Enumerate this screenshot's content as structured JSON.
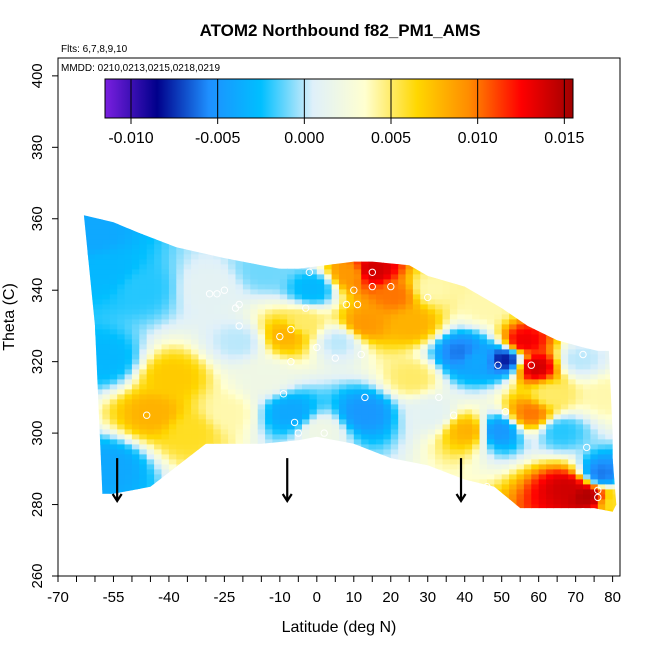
{
  "chart_data": {
    "type": "heatmap",
    "title": "ATOM2 Northbound f82_PM1_AMS",
    "annotations": [
      "Flts: 6,7,8,9,10",
      "MMDD: 0210,0213,0215,0218,0219"
    ],
    "xlabel": "Latitude (deg N)",
    "ylabel": "Theta (C)",
    "xlim": [
      -70,
      82
    ],
    "ylim": [
      260,
      405
    ],
    "x_ticks": [
      -70,
      -55,
      -40,
      -25,
      -10,
      0,
      10,
      20,
      30,
      40,
      50,
      60,
      70,
      80
    ],
    "y_ticks": [
      260,
      280,
      300,
      320,
      340,
      360,
      380,
      400
    ],
    "colorbar": {
      "min": -0.0115,
      "max": 0.0155,
      "ticks": [
        -0.01,
        -0.005,
        0.0,
        0.005,
        0.01,
        0.015
      ],
      "tick_labels": [
        "-0.010",
        "-0.005",
        "0.000",
        "0.005",
        "0.010",
        "0.015"
      ],
      "colors": [
        "#7a1fe0",
        "#00008b",
        "#1e90ff",
        "#00bfff",
        "#dff0fa",
        "#ffffd0",
        "#ffd700",
        "#ff8c00",
        "#ff0000",
        "#a00000"
      ]
    },
    "domain_outline": [
      [
        -63,
        361
      ],
      [
        -55,
        359
      ],
      [
        -48,
        356
      ],
      [
        -38,
        352
      ],
      [
        -25,
        349
      ],
      [
        -10,
        346
      ],
      [
        -5,
        346
      ],
      [
        10,
        348
      ],
      [
        15,
        348
      ],
      [
        25,
        347
      ],
      [
        30,
        344
      ],
      [
        40,
        341
      ],
      [
        50,
        335
      ],
      [
        57,
        330
      ],
      [
        65,
        326
      ],
      [
        72,
        324
      ],
      [
        76,
        323
      ],
      [
        79,
        323
      ],
      [
        80,
        300
      ],
      [
        80,
        293
      ],
      [
        81,
        280
      ],
      [
        80,
        278
      ],
      [
        75,
        279
      ],
      [
        70,
        279
      ],
      [
        55,
        279
      ],
      [
        48,
        285
      ],
      [
        40,
        287
      ],
      [
        30,
        291
      ],
      [
        20,
        293
      ],
      [
        10,
        297
      ],
      [
        0,
        299
      ],
      [
        -5,
        298
      ],
      [
        -15,
        297
      ],
      [
        -30,
        297
      ],
      [
        -45,
        285
      ],
      [
        -55,
        283
      ],
      [
        -58,
        283
      ],
      [
        -60,
        330
      ],
      [
        -63,
        361
      ]
    ],
    "field_anchors": [
      {
        "x": -62,
        "y": 355,
        "v": -0.004
      },
      {
        "x": -58,
        "y": 345,
        "v": -0.003
      },
      {
        "x": -58,
        "y": 320,
        "v": -0.003
      },
      {
        "x": -57,
        "y": 290,
        "v": -0.004
      },
      {
        "x": -48,
        "y": 340,
        "v": -0.002
      },
      {
        "x": -45,
        "y": 305,
        "v": 0.008
      },
      {
        "x": -40,
        "y": 315,
        "v": 0.007
      },
      {
        "x": -35,
        "y": 300,
        "v": 0.006
      },
      {
        "x": -30,
        "y": 340,
        "v": 0.001
      },
      {
        "x": -22,
        "y": 325,
        "v": 0.0
      },
      {
        "x": -25,
        "y": 305,
        "v": 0.004
      },
      {
        "x": -15,
        "y": 345,
        "v": -0.001
      },
      {
        "x": -15,
        "y": 315,
        "v": 0.002
      },
      {
        "x": -9,
        "y": 327,
        "v": 0.008
      },
      {
        "x": -5,
        "y": 330,
        "v": 0.005
      },
      {
        "x": -8,
        "y": 305,
        "v": -0.004
      },
      {
        "x": 0,
        "y": 300,
        "v": 0.002
      },
      {
        "x": -2,
        "y": 340,
        "v": -0.003
      },
      {
        "x": 5,
        "y": 325,
        "v": 0.0
      },
      {
        "x": 8,
        "y": 344,
        "v": 0.009
      },
      {
        "x": 14,
        "y": 345,
        "v": 0.014
      },
      {
        "x": 12,
        "y": 330,
        "v": 0.009
      },
      {
        "x": 12,
        "y": 305,
        "v": -0.005
      },
      {
        "x": 20,
        "y": 338,
        "v": 0.01
      },
      {
        "x": 25,
        "y": 330,
        "v": 0.008
      },
      {
        "x": 25,
        "y": 315,
        "v": 0.005
      },
      {
        "x": 30,
        "y": 305,
        "v": 0.001
      },
      {
        "x": 30,
        "y": 340,
        "v": 0.004
      },
      {
        "x": 38,
        "y": 322,
        "v": -0.006
      },
      {
        "x": 40,
        "y": 300,
        "v": 0.008
      },
      {
        "x": 42,
        "y": 320,
        "v": -0.004
      },
      {
        "x": 45,
        "y": 335,
        "v": 0.004
      },
      {
        "x": 48,
        "y": 300,
        "v": -0.005
      },
      {
        "x": 50,
        "y": 320,
        "v": -0.008
      },
      {
        "x": 55,
        "y": 325,
        "v": 0.013
      },
      {
        "x": 57,
        "y": 305,
        "v": 0.01
      },
      {
        "x": 58,
        "y": 318,
        "v": 0.014
      },
      {
        "x": 62,
        "y": 310,
        "v": 0.005
      },
      {
        "x": 65,
        "y": 300,
        "v": -0.002
      },
      {
        "x": 67,
        "y": 284,
        "v": 0.014
      },
      {
        "x": 72,
        "y": 282,
        "v": 0.015
      },
      {
        "x": 76,
        "y": 288,
        "v": -0.006
      },
      {
        "x": 70,
        "y": 320,
        "v": 0.0
      },
      {
        "x": 78,
        "y": 310,
        "v": 0.004
      },
      {
        "x": 80,
        "y": 280,
        "v": 0.006
      }
    ],
    "sample_points": [
      [
        -46,
        305
      ],
      [
        -29,
        339
      ],
      [
        -27,
        339
      ],
      [
        -25,
        340
      ],
      [
        -22,
        335
      ],
      [
        -21,
        336
      ],
      [
        -21,
        330
      ],
      [
        -14,
        348
      ],
      [
        -10,
        327
      ],
      [
        -9,
        311
      ],
      [
        -7,
        320
      ],
      [
        -7,
        329
      ],
      [
        -6,
        303
      ],
      [
        -5,
        300
      ],
      [
        -2,
        345
      ],
      [
        -3,
        335
      ],
      [
        0,
        324
      ],
      [
        2,
        300
      ],
      [
        5,
        321
      ],
      [
        8,
        336
      ],
      [
        10,
        340
      ],
      [
        11,
        336
      ],
      [
        12,
        322
      ],
      [
        13,
        294
      ],
      [
        13,
        310
      ],
      [
        15,
        345
      ],
      [
        15,
        341
      ],
      [
        20,
        341
      ],
      [
        30,
        338
      ],
      [
        33,
        310
      ],
      [
        37,
        305
      ],
      [
        46,
        285
      ],
      [
        49,
        319
      ],
      [
        51,
        306
      ],
      [
        58,
        319
      ],
      [
        72,
        278
      ],
      [
        73,
        296
      ],
      [
        76,
        284
      ],
      [
        76,
        282
      ],
      [
        72,
        322
      ]
    ],
    "arrows_x": [
      -54,
      -8,
      39
    ],
    "arrow_tail_y": 293,
    "arrow_head_y": 281
  }
}
